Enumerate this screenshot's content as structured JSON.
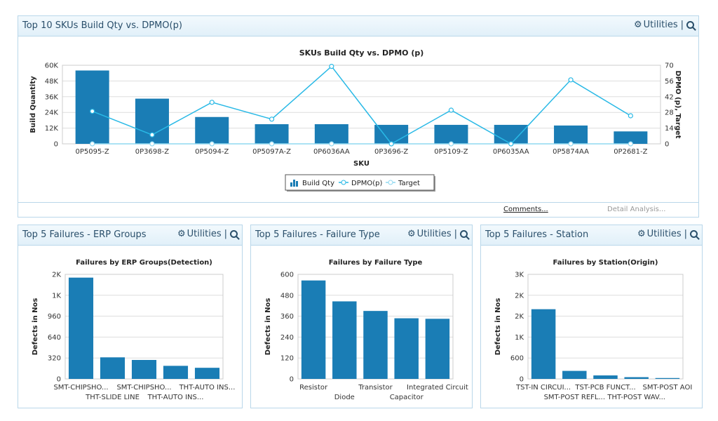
{
  "main_panel": {
    "title": "Top 10 SKUs Build Qty vs. DPMO(p)",
    "utilities_label": "Utilities",
    "footer": {
      "comments": "Comments...",
      "detail": "Detail Analysis..."
    }
  },
  "main_chart": {
    "chart_data": {
      "type": "bar",
      "title": "SKUs Build Qty vs. DPMO (p)",
      "xlabel": "SKU",
      "ylabel": "Build Quantity",
      "y2label": "DPMO (p), Target",
      "categories": [
        "0P5095-Z",
        "0P3698-Z",
        "0P5094-Z",
        "0P5097A-Z",
        "0P6036AA",
        "0P3696-Z",
        "0P5109-Z",
        "0P6035AA",
        "0P5874AA",
        "0P2681-Z"
      ],
      "ylim": [
        0,
        60000
      ],
      "y_ticks": [
        "0",
        "12K",
        "24K",
        "36K",
        "48K",
        "60K"
      ],
      "y2lim": [
        0,
        70
      ],
      "y2_ticks": [
        "0",
        "14",
        "28",
        "42",
        "56",
        "70"
      ],
      "series": [
        {
          "name": "Build Qty",
          "type": "bar",
          "values": [
            56000,
            34500,
            20500,
            15000,
            15000,
            14500,
            14500,
            14500,
            14000,
            9500
          ]
        },
        {
          "name": "DPMO(p)",
          "type": "line",
          "axis": "right",
          "values": [
            29,
            8,
            37,
            22,
            69,
            0,
            30,
            0,
            57,
            25
          ]
        },
        {
          "name": "Target",
          "type": "line",
          "axis": "right",
          "values": [
            0,
            0,
            0,
            0,
            0,
            0,
            0,
            0,
            0,
            0
          ]
        }
      ],
      "legend": [
        "Build Qty",
        "DPMO(p)",
        "Target"
      ],
      "legend_position": "bottom"
    }
  },
  "panels": [
    {
      "title": "Top 5 Failures - ERP Groups",
      "utilities_label": "Utilities",
      "chart_data": {
        "type": "bar",
        "title": "Failures by ERP Groups(Detection)",
        "ylabel": "Defects in Nos",
        "ylim": [
          0,
          1600
        ],
        "y_ticks": [
          "0",
          "320",
          "640",
          "960",
          "1K",
          "2K"
        ],
        "categories": [
          "SMT-CHIPSHO...",
          "THT-SLIDE LINE",
          "SMT-CHIPSHO...",
          "THT-AUTO INS...",
          "THT-AUTO INS..."
        ],
        "values": [
          1550,
          330,
          290,
          200,
          170
        ]
      }
    },
    {
      "title": "Top 5 Failures - Failure Type",
      "utilities_label": "Utilities",
      "chart_data": {
        "type": "bar",
        "title": "Failures by Failure Type",
        "ylabel": "Defects in Nos",
        "ylim": [
          0,
          600
        ],
        "y_ticks": [
          "0",
          "120",
          "240",
          "360",
          "480",
          "600"
        ],
        "categories": [
          "Resistor",
          "Diode",
          "Transistor",
          "Capacitor",
          "Integrated Circuit"
        ],
        "values": [
          565,
          445,
          390,
          348,
          345
        ]
      }
    },
    {
      "title": "Top 5 Failures - Station",
      "utilities_label": "Utilities",
      "chart_data": {
        "type": "bar",
        "title": "Failures by Station(Origin)",
        "ylabel": "Defects in Nos",
        "ylim": [
          0,
          3000
        ],
        "y_ticks": [
          "0",
          "600",
          "1K",
          "2K",
          "2K",
          "3K"
        ],
        "categories": [
          "TST-IN CIRCUI...",
          "SMT-POST REFL...",
          "TST-PCB FUNCT...",
          "THT-POST WAV...",
          "SMT-POST AOI"
        ],
        "values": [
          2000,
          230,
          100,
          50,
          25
        ]
      }
    }
  ],
  "colors": {
    "bar": "#1a7db5",
    "line": "#29b9e6",
    "target": "#8fd8f0",
    "header": "#e1f0f9",
    "border": "#b9d7ea"
  },
  "icons": [
    "gear-icon",
    "zoom-icon",
    "bar-legend-icon"
  ]
}
